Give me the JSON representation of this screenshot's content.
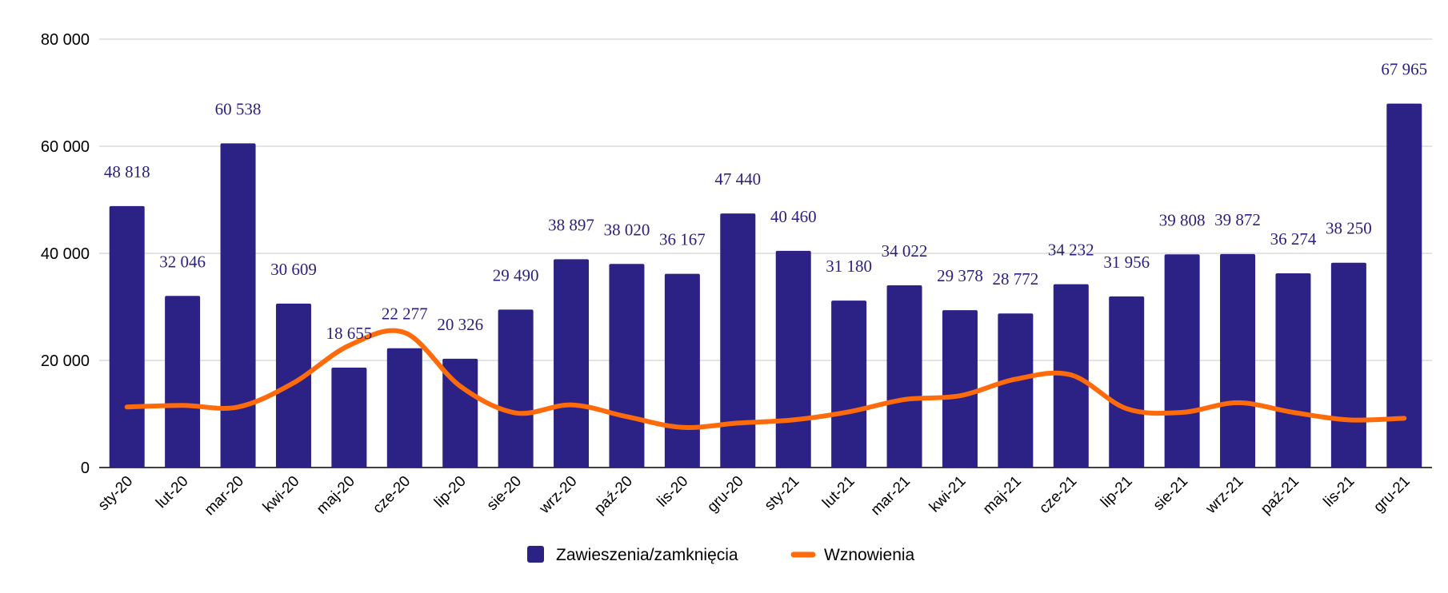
{
  "chart_data": {
    "type": "bar",
    "categories": [
      "sty-20",
      "lut-20",
      "mar-20",
      "kwi-20",
      "maj-20",
      "cze-20",
      "lip-20",
      "sie-20",
      "wrz-20",
      "paź-20",
      "lis-20",
      "gru-20",
      "sty-21",
      "lut-21",
      "mar-21",
      "kwi-21",
      "maj-21",
      "cze-21",
      "lip-21",
      "sie-21",
      "wrz-21",
      "paź-21",
      "lis-21",
      "gru-21"
    ],
    "series": [
      {
        "name": "Zawieszenia/zamknięcia",
        "type": "bar",
        "color": "#2c2185",
        "values": [
          48818,
          32046,
          60538,
          30609,
          18655,
          22277,
          20326,
          29490,
          38897,
          38020,
          36167,
          47440,
          40460,
          31180,
          34022,
          29378,
          28772,
          34232,
          31956,
          39808,
          39872,
          36274,
          38250,
          67965
        ],
        "labels": [
          "48 818",
          "32 046",
          "60 538",
          "30 609",
          "18 655",
          "22 277",
          "20 326",
          "29 490",
          "38 897",
          "38 020",
          "36 167",
          "47 440",
          "40 460",
          "31 180",
          "34 022",
          "29 378",
          "28 772",
          "34 232",
          "31 956",
          "39 808",
          "39 872",
          "36 274",
          "38 250",
          "67 965"
        ]
      },
      {
        "name": "Wznowienia",
        "type": "line",
        "smooth": true,
        "color": "#ff6a0a",
        "values": [
          11300,
          11600,
          11300,
          15800,
          22800,
          25200,
          15200,
          10200,
          11700,
          9500,
          7500,
          8300,
          8900,
          10400,
          12700,
          13400,
          16500,
          17300,
          11000,
          10300,
          12100,
          10300,
          8900,
          9200
        ]
      }
    ],
    "ylim": [
      0,
      80000
    ],
    "yticks": [
      0,
      20000,
      40000,
      60000,
      80000
    ],
    "ytick_labels": [
      "0",
      "20 000",
      "40 000",
      "60 000",
      "80 000"
    ],
    "grid": true,
    "legend_position": "bottom"
  }
}
